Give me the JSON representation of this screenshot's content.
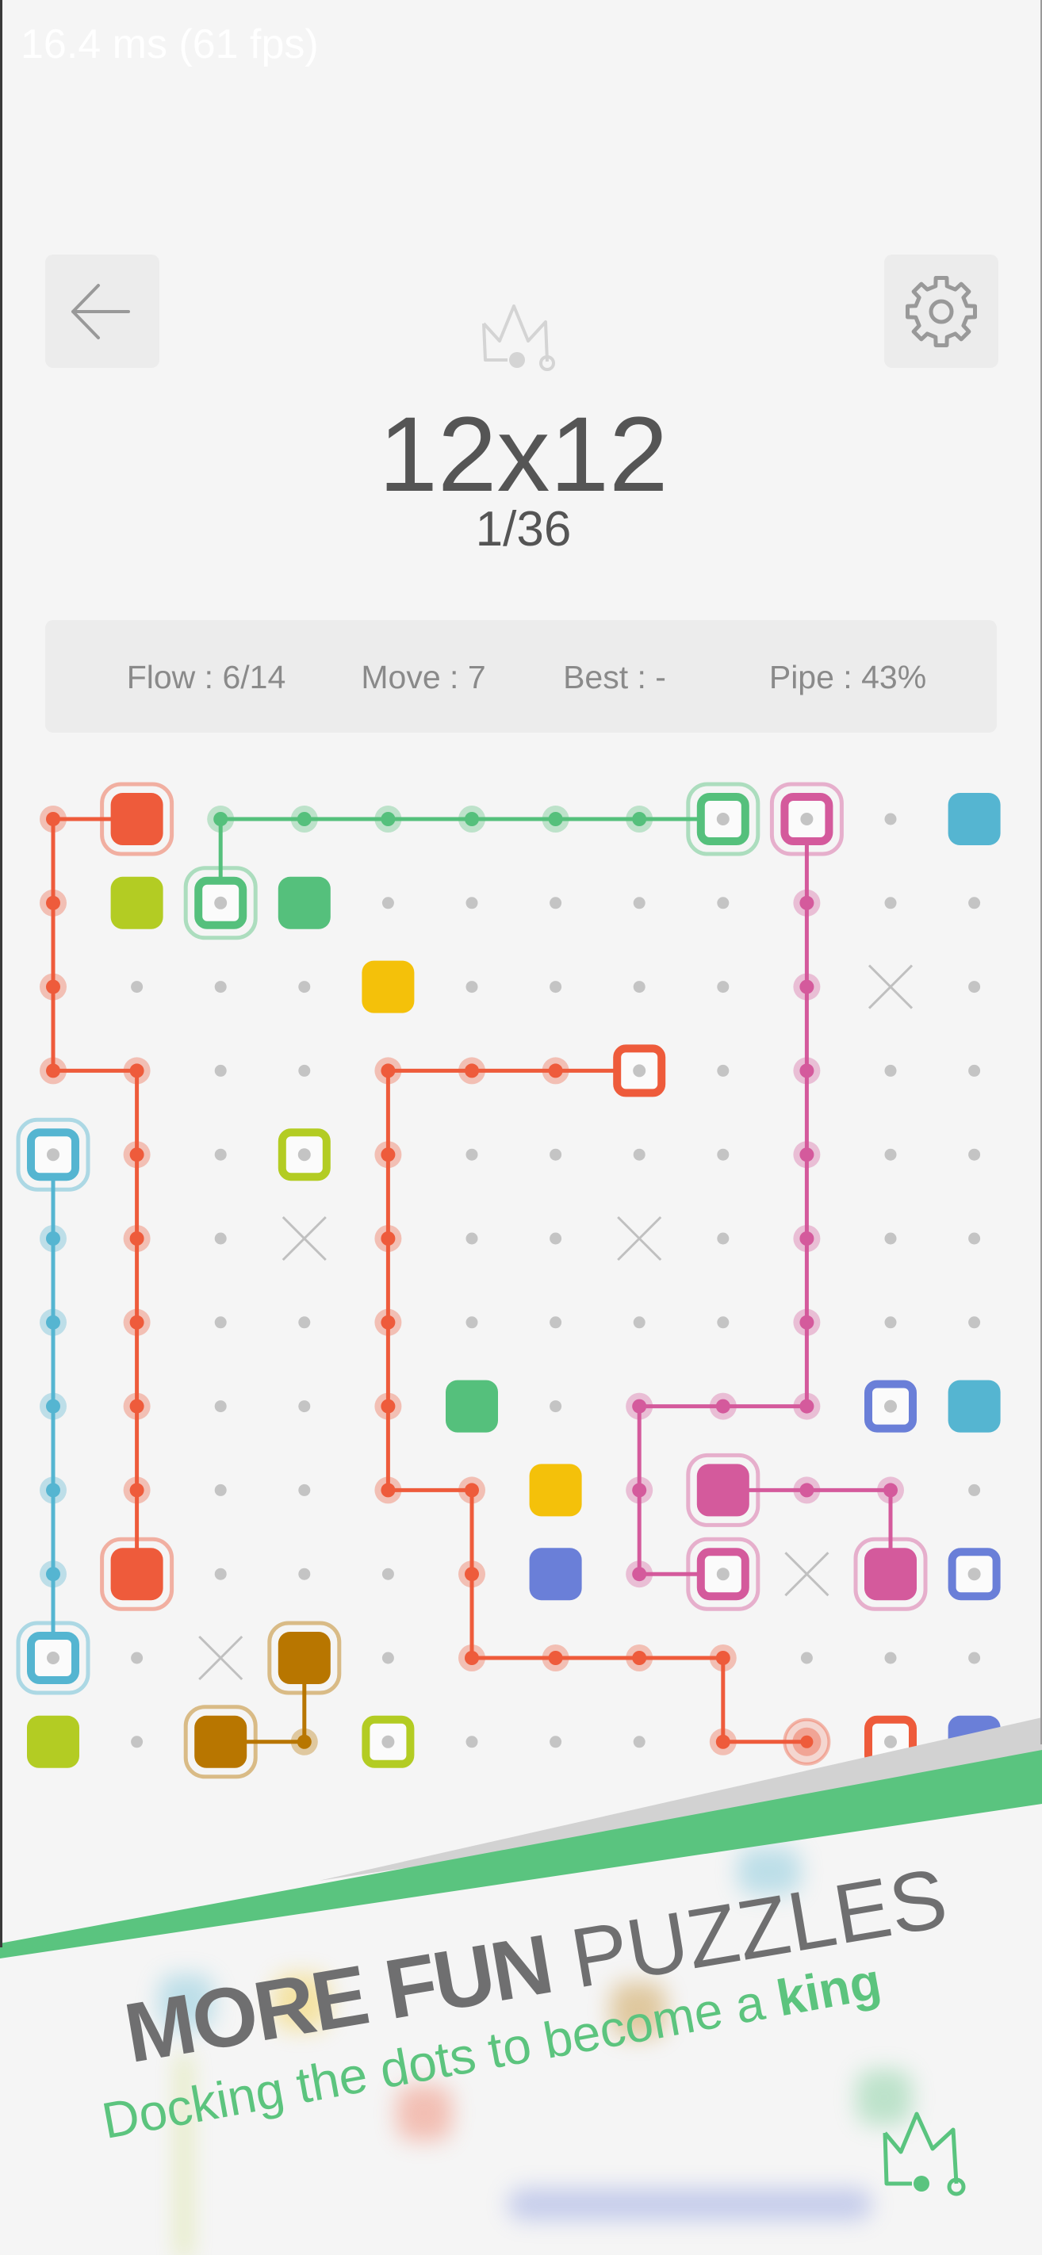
{
  "debug": {
    "fps_text": "16.4 ms (61 fps)"
  },
  "header": {
    "back_icon": "arrow-left-icon",
    "settings_icon": "gear-icon",
    "crown_icon": "crown-icon",
    "title": "12x12",
    "level": "1/36"
  },
  "stats": {
    "flow": "Flow : 6/14",
    "move": "Move : 7",
    "best": "Best : -",
    "pipe": "Pipe : 43%"
  },
  "colors": {
    "O": "#ee5b3b",
    "G": "#55c07c",
    "K": "#d45a9c",
    "B": "#55b5d1",
    "L": "#b3cc23",
    "Y": "#f4c10a",
    "I": "#6a7fd8",
    "W": "#b87600",
    "dot": "#c4c4c4",
    "background": "#f5f5f5",
    "banner_green": "#5ac47f"
  },
  "board": {
    "size": "12x12",
    "legend": ". = empty dot, x = blocked, F = filled endpoint, FH = selected filled endpoint, H = hollow endpoint, HH = selected hollow endpoint, P = pipe segment, C = pipe head",
    "rows": [
      [
        "P:O",
        "FH:O",
        "P:G",
        "P:G",
        "P:G",
        "P:G",
        "P:G",
        "P:G",
        "HH:G",
        "HH:K",
        ".",
        "F:B"
      ],
      [
        "P:O",
        "F:L",
        "HH:G",
        "F:G",
        ".",
        ".",
        ".",
        ".",
        ".",
        "P:K",
        ".",
        "."
      ],
      [
        "P:O",
        ".",
        ".",
        ".",
        "F:Y",
        ".",
        ".",
        ".",
        ".",
        "P:K",
        "x",
        "."
      ],
      [
        "P:O",
        "P:O",
        ".",
        ".",
        "P:O",
        "P:O",
        "P:O",
        "H:O",
        ".",
        "P:K",
        ".",
        "."
      ],
      [
        "HH:B",
        "P:O",
        ".",
        "H:L",
        "P:O",
        ".",
        ".",
        ".",
        ".",
        "P:K",
        ".",
        "."
      ],
      [
        "P:B",
        "P:O",
        ".",
        "x",
        "P:O",
        ".",
        ".",
        "x",
        ".",
        "P:K",
        ".",
        "."
      ],
      [
        "P:B",
        "P:O",
        ".",
        ".",
        "P:O",
        ".",
        ".",
        ".",
        ".",
        "P:K",
        ".",
        "."
      ],
      [
        "P:B",
        "P:O",
        ".",
        ".",
        "P:O",
        "F:G",
        ".",
        "P:K",
        "P:K",
        "P:K",
        "H:I",
        "F:B"
      ],
      [
        "P:B",
        "P:O",
        ".",
        ".",
        "P:O",
        "P:O",
        "F:Y",
        "P:K",
        "FH:K",
        "P:K",
        "P:K",
        "."
      ],
      [
        "P:B",
        "FH:O",
        ".",
        ".",
        ".",
        "P:O",
        "F:I",
        "P:K",
        "HH:K",
        "x",
        "FH:K",
        "H:I"
      ],
      [
        "HH:B",
        ".",
        "x",
        "FH:W",
        ".",
        "P:O",
        "P:O",
        "P:O",
        "P:O",
        ".",
        ".",
        "."
      ],
      [
        "F:L",
        ".",
        "FH:W",
        "P:W",
        "H:L",
        ".",
        ".",
        ".",
        "P:O",
        "C:O",
        "H:O",
        "F:I"
      ]
    ],
    "pipes": [
      {
        "color": "O",
        "cells": [
          [
            0,
            1
          ],
          [
            0,
            0
          ],
          [
            3,
            0
          ],
          [
            3,
            1
          ],
          [
            9,
            1
          ]
        ]
      },
      {
        "color": "G",
        "cells": [
          [
            1,
            2
          ],
          [
            0,
            2
          ],
          [
            0,
            8
          ]
        ]
      },
      {
        "color": "K",
        "cells": [
          [
            0,
            9
          ],
          [
            7,
            9
          ],
          [
            7,
            7
          ],
          [
            9,
            7
          ],
          [
            9,
            8
          ]
        ]
      },
      {
        "color": "K",
        "cells": [
          [
            8,
            8
          ],
          [
            8,
            10
          ],
          [
            9,
            10
          ]
        ]
      },
      {
        "color": "O",
        "cells": [
          [
            3,
            7
          ],
          [
            3,
            4
          ],
          [
            8,
            4
          ],
          [
            8,
            5
          ],
          [
            10,
            5
          ],
          [
            10,
            8
          ],
          [
            11,
            8
          ],
          [
            11,
            9
          ]
        ]
      },
      {
        "color": "B",
        "cells": [
          [
            4,
            0
          ],
          [
            10,
            0
          ]
        ]
      },
      {
        "color": "W",
        "cells": [
          [
            11,
            2
          ],
          [
            11,
            3
          ],
          [
            10,
            3
          ]
        ]
      }
    ]
  },
  "promo": {
    "headline_bold": "MORE FUN",
    "headline_light": "PUZZLES",
    "subline_prefix": "Docking the dots to become a ",
    "subline_bold": "king",
    "logo_icon": "crown-dots-icon"
  }
}
